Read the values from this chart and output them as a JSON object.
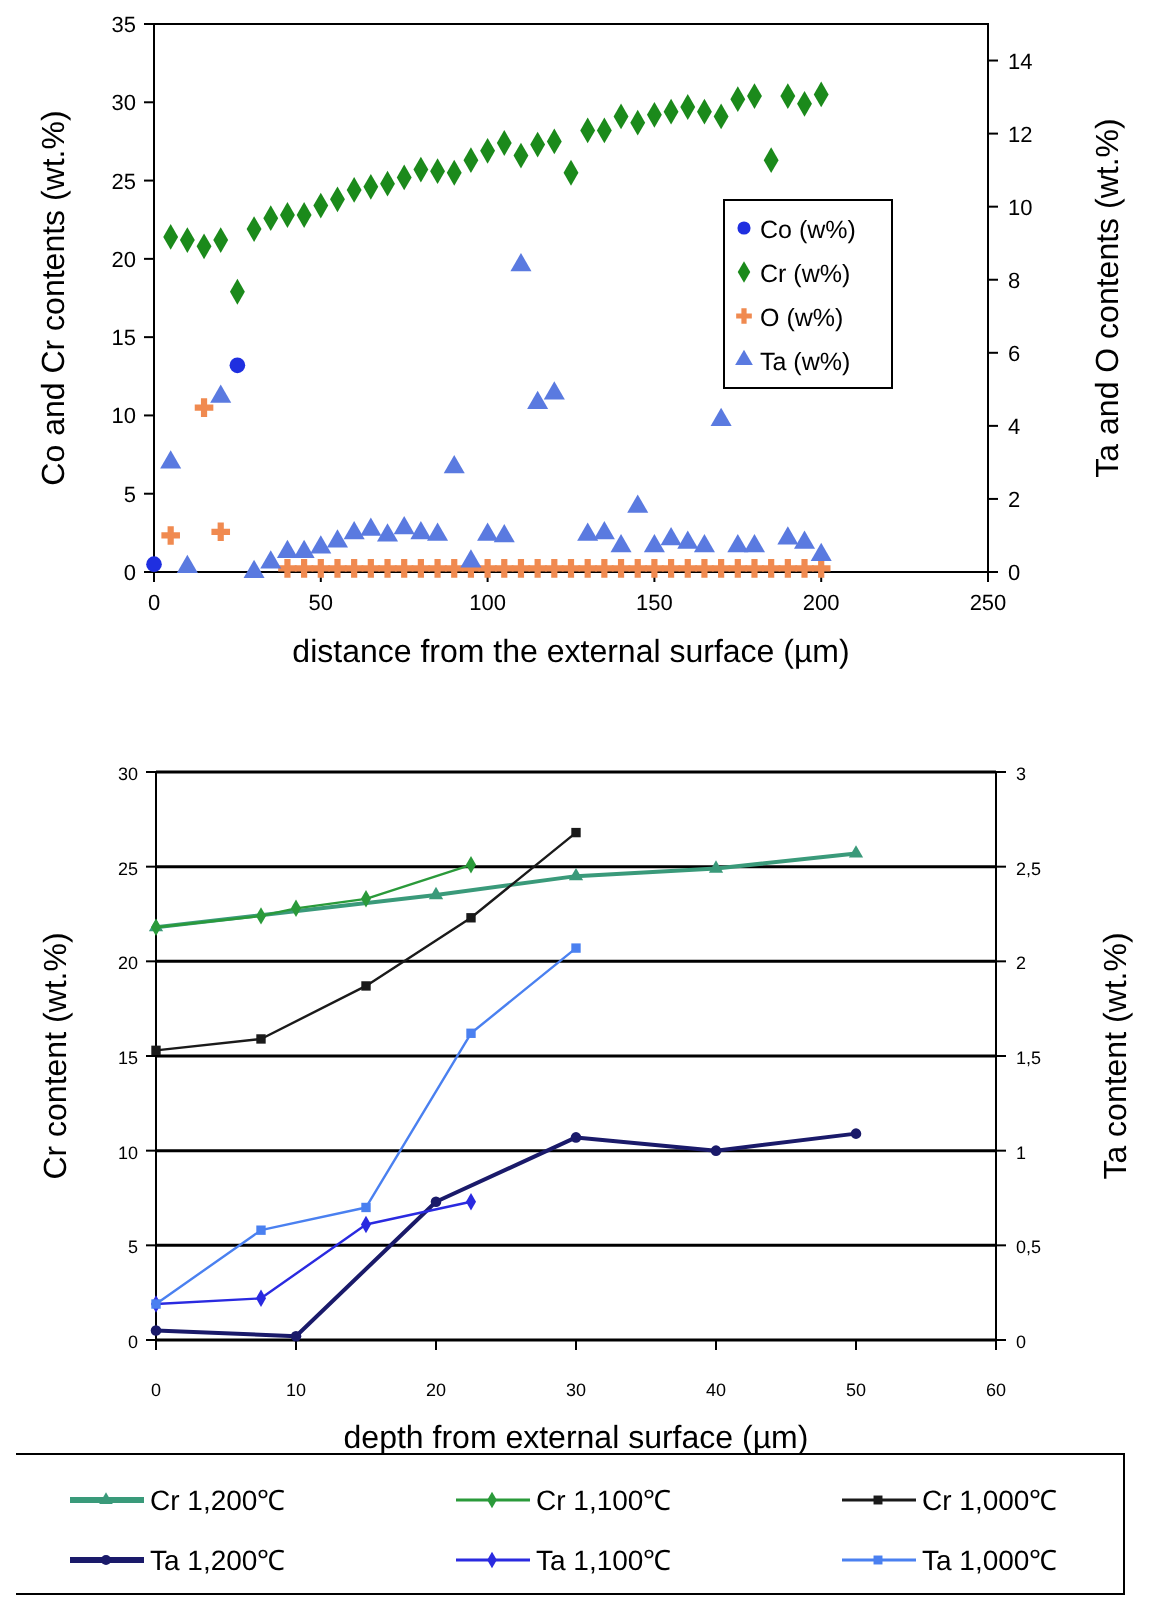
{
  "chart_data": [
    {
      "type": "scatter",
      "xlabel": "distance from the external surface (µm)",
      "ylabel": "Co and Cr contents (wt.%)",
      "y2label": "Ta and O contents (wt.%)",
      "xlim": [
        0,
        250
      ],
      "xticks": [
        0,
        50,
        100,
        150,
        200,
        250
      ],
      "ylim": [
        0,
        35
      ],
      "yticks": [
        0,
        5,
        10,
        15,
        20,
        25,
        30,
        35
      ],
      "y2lim": [
        0,
        15
      ],
      "y2ticks": [
        0,
        2,
        4,
        6,
        8,
        10,
        12,
        14
      ],
      "grid": false,
      "legend": "right",
      "series": [
        {
          "name": "Co (w%)",
          "color": "#1f2fe0",
          "marker": "circle",
          "x": [
            0,
            25
          ],
          "values": [
            0.5,
            13.2
          ]
        },
        {
          "name": "Cr (w%)",
          "color": "#1b8a1b",
          "marker": "diamond",
          "x": [
            5,
            10,
            15,
            20,
            25,
            30,
            35,
            40,
            45,
            50,
            55,
            60,
            65,
            70,
            75,
            80,
            85,
            90,
            95,
            100,
            105,
            110,
            115,
            120,
            125,
            130,
            135,
            140,
            145,
            150,
            155,
            160,
            165,
            170,
            175,
            180,
            185,
            190,
            195,
            200
          ],
          "values": [
            21.4,
            21.2,
            20.8,
            21.2,
            17.9,
            21.9,
            22.6,
            22.8,
            22.8,
            23.4,
            23.8,
            24.4,
            24.6,
            24.8,
            25.2,
            25.7,
            25.6,
            25.5,
            26.3,
            26.9,
            27.4,
            26.6,
            27.3,
            27.5,
            25.5,
            28.2,
            28.2,
            29.1,
            28.7,
            29.2,
            29.4,
            29.7,
            29.4,
            29.1,
            30.2,
            30.4,
            26.3,
            30.4,
            29.9,
            30.5
          ]
        },
        {
          "name": "O (w%)",
          "color": "#f08a50",
          "marker": "cross",
          "axis": "y2",
          "x": [
            5,
            15,
            20,
            30,
            35,
            40,
            45,
            50,
            55,
            60,
            65,
            70,
            75,
            80,
            85,
            90,
            95,
            100,
            105,
            110,
            115,
            120,
            125,
            130,
            135,
            140,
            145,
            150,
            155,
            160,
            165,
            170,
            175,
            180,
            185,
            190,
            195,
            200
          ],
          "values": [
            1.0,
            4.5,
            1.1,
            null,
            null,
            0.1,
            0.1,
            0.1,
            0.1,
            0.1,
            0.1,
            0.1,
            0.1,
            0.1,
            0.1,
            0.1,
            0.1,
            0.1,
            0.1,
            0.1,
            0.1,
            0.1,
            0.1,
            0.1,
            0.1,
            0.1,
            0.1,
            0.1,
            0.1,
            0.1,
            0.1,
            0.1,
            0.1,
            0.1,
            0.1,
            0.1,
            0.1,
            0.1
          ]
        },
        {
          "name": "Ta (w%)",
          "color": "#5a7ae0",
          "marker": "triangle",
          "axis": "y2",
          "x": [
            5,
            10,
            20,
            30,
            35,
            40,
            45,
            50,
            55,
            60,
            65,
            70,
            75,
            80,
            85,
            90,
            95,
            100,
            105,
            110,
            115,
            120,
            130,
            135,
            140,
            145,
            150,
            155,
            160,
            165,
            170,
            175,
            180,
            190,
            195,
            200
          ],
          "values": [
            3.0,
            0.14,
            4.8,
            0,
            0.26,
            0.55,
            0.55,
            0.67,
            0.84,
            1.06,
            1.16,
            1.0,
            1.2,
            1.06,
            1.02,
            2.87,
            0.29,
            1.02,
            0.98,
            8.4,
            4.63,
            4.89,
            1.02,
            1.06,
            0.71,
            1.79,
            0.71,
            0.9,
            0.8,
            0.71,
            4.16,
            0.71,
            0.71,
            0.92,
            0.8,
            0.47
          ]
        }
      ]
    },
    {
      "type": "line",
      "xlabel": "depth from external surface (µm)",
      "ylabel": "Cr content (wt.%)",
      "y2label": "Ta content (wt.%)",
      "xlim": [
        0,
        60
      ],
      "xticks": [
        0,
        10,
        20,
        30,
        40,
        50,
        60
      ],
      "ylim": [
        0,
        30
      ],
      "yticks": [
        0,
        5,
        10,
        15,
        20,
        25,
        30
      ],
      "y2lim": [
        0,
        3
      ],
      "y2ticks": [
        0,
        {
          "value": 0.5,
          "label": "0,5"
        },
        1,
        {
          "value": 1.5,
          "label": "1,5"
        },
        2,
        {
          "value": 2.5,
          "label": "2,5"
        },
        3
      ],
      "grid": "y",
      "legend": "bottom",
      "line_style": "solid",
      "series": [
        {
          "name": "Cr 1,200℃",
          "color": "#3a9a7a",
          "marker": "triangle",
          "x": [
            0,
            20,
            30,
            40,
            50
          ],
          "values": [
            21.8,
            23.5,
            24.5,
            24.9,
            25.7
          ]
        },
        {
          "name": "Cr 1,100℃",
          "color": "#2a9a3a",
          "marker": "diamond",
          "x": [
            0,
            7.5,
            10,
            15,
            22.5
          ],
          "values": [
            21.8,
            22.4,
            22.8,
            23.3,
            25.1
          ]
        },
        {
          "name": "Cr 1,000℃",
          "color": "#1a1a1a",
          "marker": "square",
          "x": [
            0,
            7.5,
            15,
            22.5,
            30
          ],
          "values": [
            15.3,
            15.9,
            18.7,
            22.3,
            26.8
          ]
        },
        {
          "name": "Ta 1,200℃",
          "color": "#1a1a6a",
          "marker": "circle",
          "axis": "y2",
          "x": [
            0,
            10,
            20,
            30,
            40,
            50
          ],
          "values": [
            0.05,
            0.02,
            0.73,
            1.07,
            1.0,
            1.09
          ]
        },
        {
          "name": "Ta 1,100℃",
          "color": "#2a2ae0",
          "marker": "diamond",
          "axis": "y2",
          "x": [
            0,
            7.5,
            15,
            22.5
          ],
          "values": [
            0.19,
            0.22,
            0.61,
            0.73
          ]
        },
        {
          "name": "Ta 1,000℃",
          "color": "#4a80f0",
          "marker": "square",
          "axis": "y2",
          "x": [
            0,
            7.5,
            15,
            22.5,
            30
          ],
          "values": [
            0.19,
            0.58,
            0.7,
            1.62,
            2.07
          ]
        }
      ]
    }
  ]
}
